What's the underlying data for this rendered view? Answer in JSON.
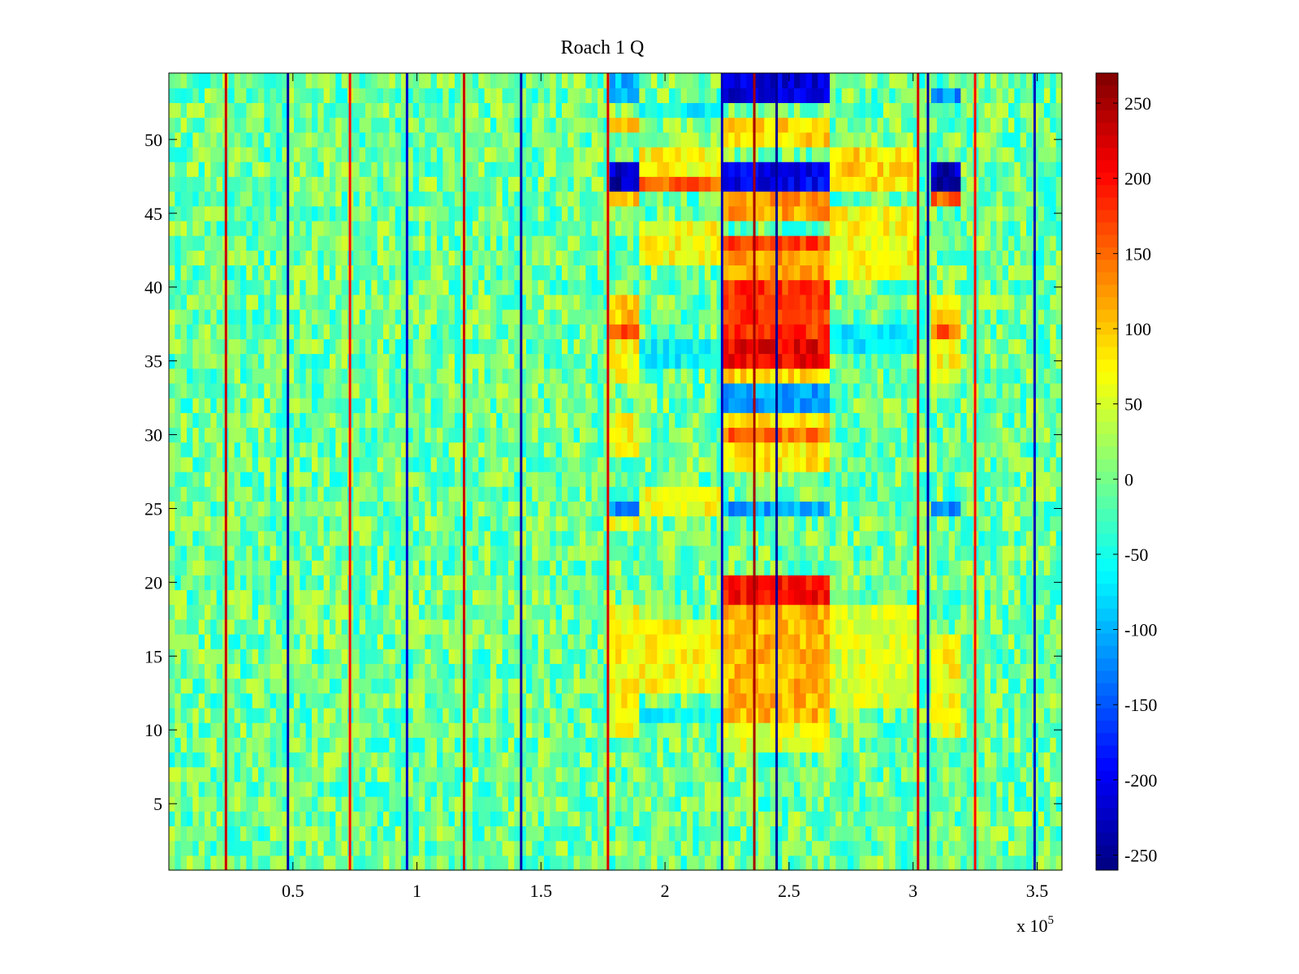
{
  "chart_data": {
    "type": "heatmap",
    "title": "Roach 1 Q",
    "xlabel": "",
    "ylabel": "",
    "x_exponent_label": "x 10",
    "x_exponent_power": "5",
    "x_range": [
      0,
      360000
    ],
    "y_range": [
      0.5,
      54.5
    ],
    "x_ticks": [
      {
        "value": 50000,
        "label": "0.5"
      },
      {
        "value": 100000,
        "label": "1"
      },
      {
        "value": 150000,
        "label": "1.5"
      },
      {
        "value": 200000,
        "label": "2"
      },
      {
        "value": 250000,
        "label": "2.5"
      },
      {
        "value": 300000,
        "label": "3"
      },
      {
        "value": 350000,
        "label": "3.5"
      }
    ],
    "y_ticks": [
      {
        "value": 5,
        "label": "5"
      },
      {
        "value": 10,
        "label": "10"
      },
      {
        "value": 15,
        "label": "15"
      },
      {
        "value": 20,
        "label": "20"
      },
      {
        "value": 25,
        "label": "25"
      },
      {
        "value": 30,
        "label": "30"
      },
      {
        "value": 35,
        "label": "35"
      },
      {
        "value": 40,
        "label": "40"
      },
      {
        "value": 45,
        "label": "45"
      },
      {
        "value": 50,
        "label": "50"
      }
    ],
    "colorbar": {
      "colormap": "jet",
      "range": [
        -260,
        270
      ],
      "ticks": [
        {
          "value": 250,
          "label": "250"
        },
        {
          "value": 200,
          "label": "200"
        },
        {
          "value": 150,
          "label": "150"
        },
        {
          "value": 100,
          "label": "100"
        },
        {
          "value": 50,
          "label": "50"
        },
        {
          "value": 0,
          "label": "0"
        },
        {
          "value": -50,
          "label": "-50"
        },
        {
          "value": -100,
          "label": "-100"
        },
        {
          "value": -150,
          "label": "-150"
        },
        {
          "value": -200,
          "label": "-200"
        },
        {
          "value": -250,
          "label": "-250"
        }
      ]
    },
    "rows": 54,
    "background_value_range": [
      -60,
      50
    ],
    "vertical_lines": [
      {
        "x": 23000,
        "value": 230
      },
      {
        "x": 48000,
        "value": -240
      },
      {
        "x": 73000,
        "value": 200
      },
      {
        "x": 96000,
        "value": -220
      },
      {
        "x": 119000,
        "value": 230
      },
      {
        "x": 142000,
        "value": -240
      },
      {
        "x": 177000,
        "value": 220
      },
      {
        "x": 223000,
        "value": -230
      },
      {
        "x": 236000,
        "value": 250
      },
      {
        "x": 245000,
        "value": -250
      },
      {
        "x": 302000,
        "value": 220
      },
      {
        "x": 306000,
        "value": -240
      },
      {
        "x": 325000,
        "value": 200
      },
      {
        "x": 349000,
        "value": -230
      }
    ],
    "blocks": [
      {
        "x0": 178000,
        "x1": 188000,
        "rows": [
          47,
          48
        ],
        "value": -230
      },
      {
        "x0": 178000,
        "x1": 188000,
        "rows": [
          53,
          54
        ],
        "value": -100
      },
      {
        "x0": 178000,
        "x1": 188000,
        "rows": [
          37
        ],
        "value": 170
      },
      {
        "x0": 178000,
        "x1": 188000,
        "rows": [
          25
        ],
        "value": -130
      },
      {
        "x0": 178000,
        "x1": 188000,
        "rows": [
          38,
          39,
          46,
          51
        ],
        "value": 100
      },
      {
        "x0": 178000,
        "x1": 188000,
        "rows": [
          10,
          11,
          12,
          13,
          14,
          15,
          16,
          17,
          18,
          24,
          29,
          30,
          31,
          34,
          35,
          36
        ],
        "value": 70
      },
      {
        "x0": 190000,
        "x1": 222000,
        "rows": [
          47
        ],
        "value": 150
      },
      {
        "x0": 190000,
        "x1": 222000,
        "rows": [
          48,
          49,
          43,
          44,
          42,
          25,
          26,
          15,
          16,
          17,
          13,
          14
        ],
        "value": 70
      },
      {
        "x0": 190000,
        "x1": 222000,
        "rows": [
          52,
          11,
          35,
          36
        ],
        "value": -60
      },
      {
        "x0": 225000,
        "x1": 265000,
        "rows": [
          53,
          54
        ],
        "value": -210
      },
      {
        "x0": 225000,
        "x1": 265000,
        "rows": [
          47,
          48
        ],
        "value": -200
      },
      {
        "x0": 225000,
        "x1": 265000,
        "rows": [
          50,
          51
        ],
        "value": 90
      },
      {
        "x0": 225000,
        "x1": 265000,
        "rows": [
          45,
          46,
          41,
          42
        ],
        "value": 120
      },
      {
        "x0": 225000,
        "x1": 265000,
        "rows": [
          43
        ],
        "value": 170
      },
      {
        "x0": 225000,
        "x1": 265000,
        "rows": [
          37,
          38,
          39,
          40
        ],
        "value": 180
      },
      {
        "x0": 225000,
        "x1": 265000,
        "rows": [
          35,
          36
        ],
        "value": 210
      },
      {
        "x0": 225000,
        "x1": 265000,
        "rows": [
          34
        ],
        "value": 90
      },
      {
        "x0": 225000,
        "x1": 265000,
        "rows": [
          30
        ],
        "value": 150
      },
      {
        "x0": 225000,
        "x1": 265000,
        "rows": [
          31,
          28,
          29
        ],
        "value": 80
      },
      {
        "x0": 225000,
        "x1": 265000,
        "rows": [
          32,
          33,
          25
        ],
        "value": -110
      },
      {
        "x0": 225000,
        "x1": 265000,
        "rows": [
          19,
          20
        ],
        "value": 200
      },
      {
        "x0": 225000,
        "x1": 265000,
        "rows": [
          11,
          12,
          13,
          14,
          15,
          16,
          17,
          18
        ],
        "value": 110
      },
      {
        "x0": 225000,
        "x1": 265000,
        "rows": [
          9,
          10
        ],
        "value": 60
      },
      {
        "x0": 268000,
        "x1": 300000,
        "rows": [
          47,
          48,
          49
        ],
        "value": 90
      },
      {
        "x0": 268000,
        "x1": 300000,
        "rows": [
          41,
          42,
          43,
          44,
          45
        ],
        "value": 70
      },
      {
        "x0": 268000,
        "x1": 300000,
        "rows": [
          36,
          37
        ],
        "value": -70
      },
      {
        "x0": 268000,
        "x1": 300000,
        "rows": [
          12,
          13,
          14,
          15,
          16,
          17,
          18
        ],
        "value": 50
      },
      {
        "x0": 308000,
        "x1": 318000,
        "rows": [
          47,
          48
        ],
        "value": -230
      },
      {
        "x0": 308000,
        "x1": 318000,
        "rows": [
          53
        ],
        "value": -120
      },
      {
        "x0": 308000,
        "x1": 318000,
        "rows": [
          37,
          46
        ],
        "value": 150
      },
      {
        "x0": 308000,
        "x1": 318000,
        "rows": [
          38,
          39
        ],
        "value": 90
      },
      {
        "x0": 308000,
        "x1": 318000,
        "rows": [
          25
        ],
        "value": -120
      },
      {
        "x0": 308000,
        "x1": 318000,
        "rows": [
          10,
          11,
          12,
          13,
          14,
          15,
          16,
          34,
          35,
          36
        ],
        "value": 70
      }
    ]
  }
}
